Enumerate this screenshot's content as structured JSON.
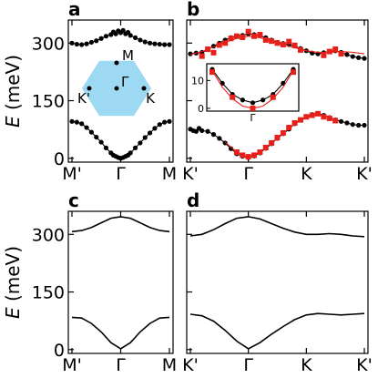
{
  "figure": {
    "ylabel_sym": "E",
    "ylabel_unit": " (meV)"
  },
  "chart_data": [
    {
      "panel": "a",
      "type": "line",
      "ylabel": "E (meV)",
      "ylim": [
        -10,
        360
      ],
      "yticks": [
        0,
        150,
        300
      ],
      "xtick_labels": [
        "M'",
        "Γ",
        "M"
      ],
      "xlim": [
        0,
        2
      ],
      "series": [
        {
          "style": "black-points-line",
          "x": [
            0,
            0.1,
            0.2,
            0.3,
            0.4,
            0.5,
            0.6,
            0.7,
            0.8,
            0.85,
            0.9,
            0.95,
            1.0,
            1.05,
            1.1,
            1.15,
            1.2,
            1.3,
            1.4,
            1.5,
            1.6,
            1.7,
            1.8,
            1.9,
            2.0
          ],
          "y": [
            300,
            297,
            296,
            298,
            302,
            306,
            312,
            318,
            322,
            329,
            324,
            332,
            327,
            333,
            324,
            328,
            320,
            314,
            308,
            303,
            300,
            298,
            297,
            296,
            296
          ]
        },
        {
          "style": "black-points-line",
          "x": [
            0,
            0.1,
            0.2,
            0.3,
            0.4,
            0.5,
            0.6,
            0.7,
            0.8,
            0.85,
            0.9,
            0.95,
            1.0,
            1.05,
            1.1,
            1.15,
            1.2,
            1.3,
            1.4,
            1.5,
            1.6,
            1.7,
            1.8,
            1.9,
            2.0
          ],
          "y": [
            96,
            94,
            90,
            80,
            68,
            55,
            42,
            27,
            14,
            8,
            5,
            2,
            0,
            2,
            5,
            8,
            14,
            27,
            40,
            54,
            66,
            78,
            88,
            94,
            96
          ]
        }
      ],
      "inset": {
        "type": "hexagon",
        "fill": "#9dd9f3",
        "labels": [
          "M",
          "Γ",
          "K'",
          "K"
        ]
      }
    },
    {
      "panel": "b",
      "type": "line",
      "ylim": [
        -10,
        360
      ],
      "yticks": [
        0,
        150,
        300
      ],
      "xtick_labels": [
        "K'",
        "Γ",
        "K",
        "K'"
      ],
      "xlim": [
        0,
        3
      ],
      "series": [
        {
          "style": "black-points-line",
          "x": [
            0,
            0.1,
            0.2,
            0.3,
            0.4,
            0.5,
            0.6,
            0.7,
            0.8,
            0.9,
            1.0,
            1.1,
            1.2,
            1.3,
            1.4,
            1.5,
            1.6,
            1.7,
            1.8,
            1.9,
            2.0,
            2.1,
            2.2,
            2.3,
            2.4,
            2.5,
            2.6,
            2.7,
            2.8,
            2.9,
            3.0
          ],
          "y": [
            272,
            274,
            276,
            283,
            292,
            300,
            308,
            314,
            318,
            320,
            324,
            322,
            319,
            314,
            308,
            302,
            299,
            296,
            292,
            286,
            280,
            274,
            272,
            275,
            278,
            280,
            276,
            270,
            265,
            262,
            260
          ]
        },
        {
          "style": "red-squares",
          "x": [
            0.2,
            0.3,
            0.4,
            0.5,
            0.6,
            0.7,
            0.8,
            0.9,
            1.0,
            1.1,
            1.2,
            1.3,
            1.4,
            1.5,
            1.6,
            1.7,
            1.8,
            1.9,
            2.3,
            2.4,
            2.5,
            2.6
          ],
          "y": [
            266,
            284,
            275,
            295,
            300,
            312,
            318,
            315,
            330,
            318,
            322,
            308,
            305,
            300,
            296,
            304,
            294,
            282,
            268,
            278,
            284,
            272
          ]
        },
        {
          "style": "red-line",
          "x": [
            0,
            0.2,
            0.4,
            0.6,
            0.8,
            1.0,
            1.2,
            1.4,
            1.6,
            1.8,
            2.0,
            2.2,
            2.4,
            2.6,
            2.8,
            3.0
          ],
          "y": [
            270,
            278,
            290,
            302,
            312,
            318,
            314,
            305,
            296,
            288,
            280,
            276,
            276,
            278,
            276,
            272
          ]
        },
        {
          "style": "black-points-line",
          "x": [
            0,
            0.05,
            0.1,
            0.15,
            0.2,
            0.3,
            0.4,
            0.5,
            0.6,
            0.7,
            0.8,
            0.9,
            1.0,
            1.1,
            1.2,
            1.3,
            1.4,
            1.5,
            1.6,
            1.7,
            1.8,
            1.9,
            2.0,
            2.1,
            2.2,
            2.3,
            2.4,
            2.5,
            2.6,
            2.7,
            2.8,
            2.9,
            3.0
          ],
          "y": [
            76,
            72,
            70,
            78,
            72,
            70,
            62,
            52,
            40,
            25,
            12,
            5,
            2,
            6,
            14,
            26,
            38,
            52,
            64,
            76,
            90,
            100,
            108,
            114,
            117,
            112,
            106,
            100,
            96,
            92,
            88,
            86,
            86
          ]
        },
        {
          "style": "red-squares",
          "x": [
            0.8,
            0.9,
            1.0,
            1.1,
            1.2,
            1.3,
            1.4,
            1.5,
            1.6,
            1.7,
            1.8,
            1.9,
            2.0,
            2.1,
            2.2,
            2.3,
            2.4,
            2.5
          ],
          "y": [
            16,
            8,
            4,
            8,
            16,
            28,
            40,
            54,
            66,
            80,
            92,
            100,
            108,
            112,
            116,
            108,
            104,
            98
          ]
        },
        {
          "style": "red-line",
          "x": [
            0.6,
            0.8,
            1.0,
            1.2,
            1.4,
            1.6,
            1.8,
            2.0,
            2.2,
            2.4
          ],
          "y": [
            42,
            16,
            2,
            16,
            40,
            66,
            90,
            106,
            114,
            106
          ]
        }
      ],
      "inset": {
        "type": "line",
        "yticks": [
          0,
          10
        ],
        "ylim": [
          -1,
          16
        ],
        "xtick_labels": [
          "Γ"
        ],
        "series": [
          {
            "style": "black-points-line",
            "x": [
              -1,
              -0.75,
              -0.5,
              -0.25,
              0,
              0.25,
              0.5,
              0.75,
              1
            ],
            "y": [
              14,
              9,
              5,
              3,
              2,
              3,
              5,
              9,
              14
            ]
          },
          {
            "style": "red-squares",
            "x": [
              -1,
              -0.5,
              0,
              0.5,
              1
            ],
            "y": [
              13,
              4,
              0,
              4,
              13
            ]
          },
          {
            "style": "red-line",
            "x": [
              -1,
              -0.75,
              -0.5,
              -0.25,
              0,
              0.25,
              0.5,
              0.75,
              1
            ],
            "y": [
              13.5,
              7.6,
              3.4,
              0.8,
              0,
              0.8,
              3.4,
              7.6,
              13.5
            ]
          }
        ]
      }
    },
    {
      "panel": "c",
      "type": "line",
      "ylabel": "E (meV)",
      "ylim": [
        -10,
        360
      ],
      "yticks": [
        0,
        150,
        300
      ],
      "xtick_labels": [
        "M'",
        "Γ",
        "M"
      ],
      "xlim": [
        0,
        2
      ],
      "series": [
        {
          "style": "black-line",
          "x": [
            0,
            0.2,
            0.4,
            0.6,
            0.8,
            1.0,
            1.2,
            1.4,
            1.6,
            1.8,
            2.0
          ],
          "y": [
            307,
            310,
            318,
            330,
            342,
            346,
            342,
            330,
            318,
            310,
            307
          ]
        },
        {
          "style": "black-line",
          "x": [
            0,
            0.2,
            0.4,
            0.6,
            0.8,
            1.0,
            1.2,
            1.4,
            1.6,
            1.8,
            2.0
          ],
          "y": [
            84,
            82,
            68,
            46,
            18,
            2,
            18,
            46,
            68,
            82,
            84
          ]
        }
      ]
    },
    {
      "panel": "d",
      "type": "line",
      "ylim": [
        -10,
        360
      ],
      "yticks": [
        0,
        150,
        300
      ],
      "xtick_labels": [
        "K'",
        "Γ",
        "K",
        "K'"
      ],
      "xlim": [
        0,
        3
      ],
      "series": [
        {
          "style": "black-line",
          "x": [
            0,
            0.2,
            0.4,
            0.6,
            0.8,
            1.0,
            1.2,
            1.4,
            1.6,
            1.8,
            2.0,
            2.2,
            2.4,
            2.6,
            2.8,
            3.0
          ],
          "y": [
            296,
            300,
            312,
            328,
            342,
            346,
            340,
            328,
            316,
            306,
            300,
            300,
            302,
            300,
            296,
            294
          ]
        },
        {
          "style": "black-line",
          "x": [
            0,
            0.2,
            0.4,
            0.6,
            0.8,
            1.0,
            1.2,
            1.4,
            1.6,
            1.8,
            2.0,
            2.2,
            2.4,
            2.6,
            2.8,
            3.0
          ],
          "y": [
            92,
            88,
            74,
            50,
            22,
            2,
            18,
            40,
            60,
            78,
            90,
            94,
            92,
            90,
            92,
            94
          ]
        }
      ]
    }
  ]
}
